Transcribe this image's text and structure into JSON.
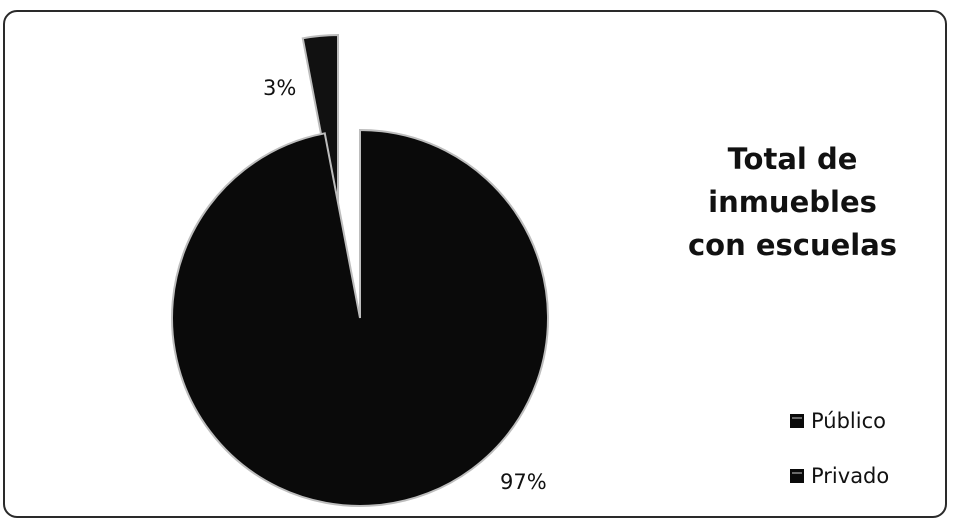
{
  "chart_data": {
    "type": "pie",
    "title_lines": [
      "Total de inmuebles",
      "con escuelas"
    ],
    "slices": [
      {
        "name": "Público",
        "value": 97,
        "label": "97%",
        "color": "#0a0a0a",
        "exploded": false
      },
      {
        "name": "Privado",
        "value": 3,
        "label": "3%",
        "color": "#111111",
        "exploded": true
      }
    ],
    "legend": {
      "position": "right",
      "items": [
        "Público",
        "Privado"
      ]
    },
    "start_angle": "12 o'clock, clockwise",
    "edge_color": "#bdbdbd"
  }
}
